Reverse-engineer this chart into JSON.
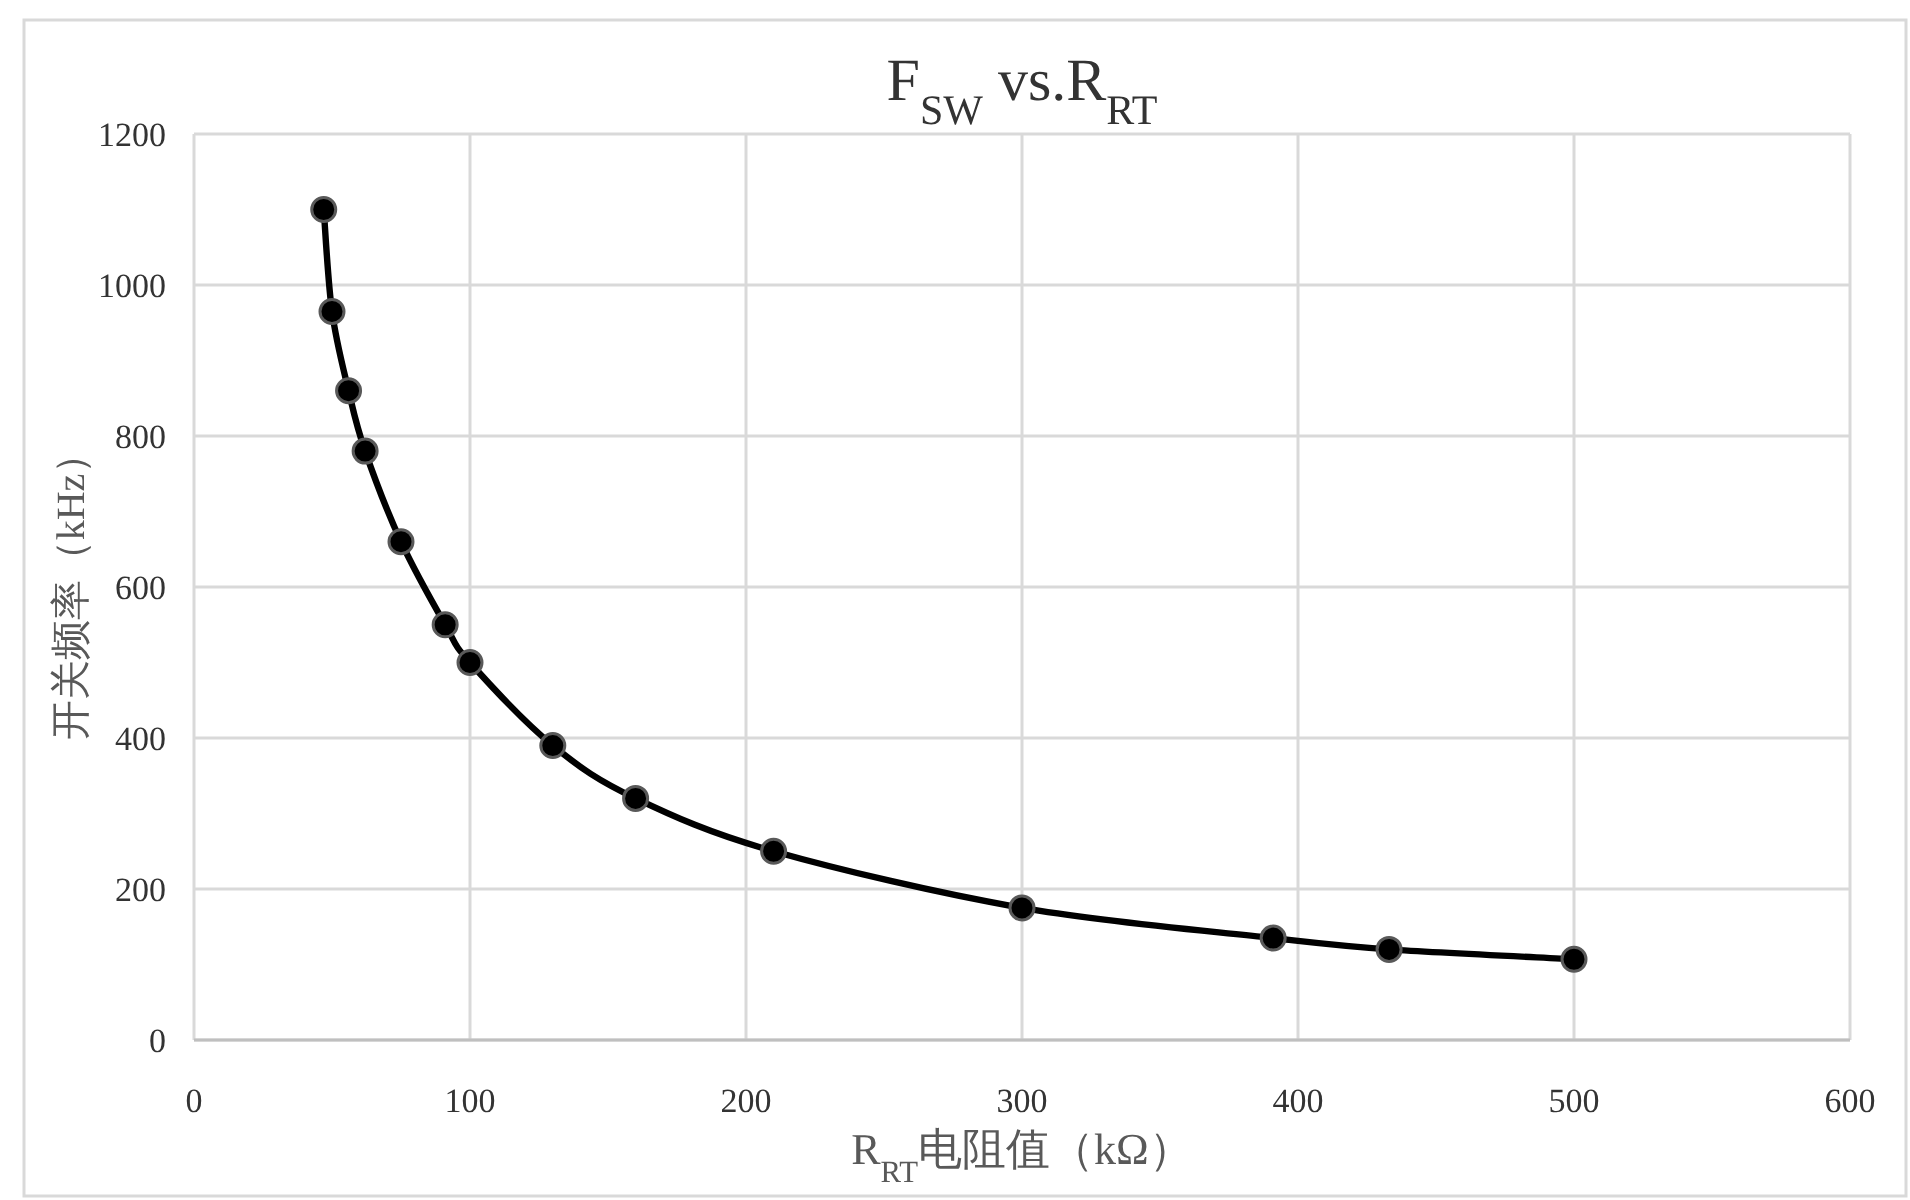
{
  "chart_data": {
    "type": "line",
    "title": "F$_{SW}$ vs.R$_{RT}$",
    "xlabel": "R$_{RT}$电阻值（kΩ）",
    "ylabel": "开关频率（kHz）",
    "series": [
      {
        "color": "#000000",
        "x": [
          47,
          50,
          56,
          62,
          75,
          91,
          100,
          130,
          160,
          210,
          300,
          391,
          433,
          500
        ],
        "values": [
          1100,
          965,
          860,
          780,
          660,
          550,
          500,
          390,
          320,
          250,
          175,
          135,
          120,
          107
        ]
      }
    ],
    "xlim": [
      0,
      600
    ],
    "xticks": [
      0,
      100,
      200,
      300,
      400,
      500,
      600
    ],
    "ylim": [
      0,
      1200
    ],
    "yticks": [
      0,
      200,
      400,
      600,
      800,
      1000,
      1200
    ],
    "grid": true,
    "marker": "circle",
    "line_style": "solid"
  }
}
